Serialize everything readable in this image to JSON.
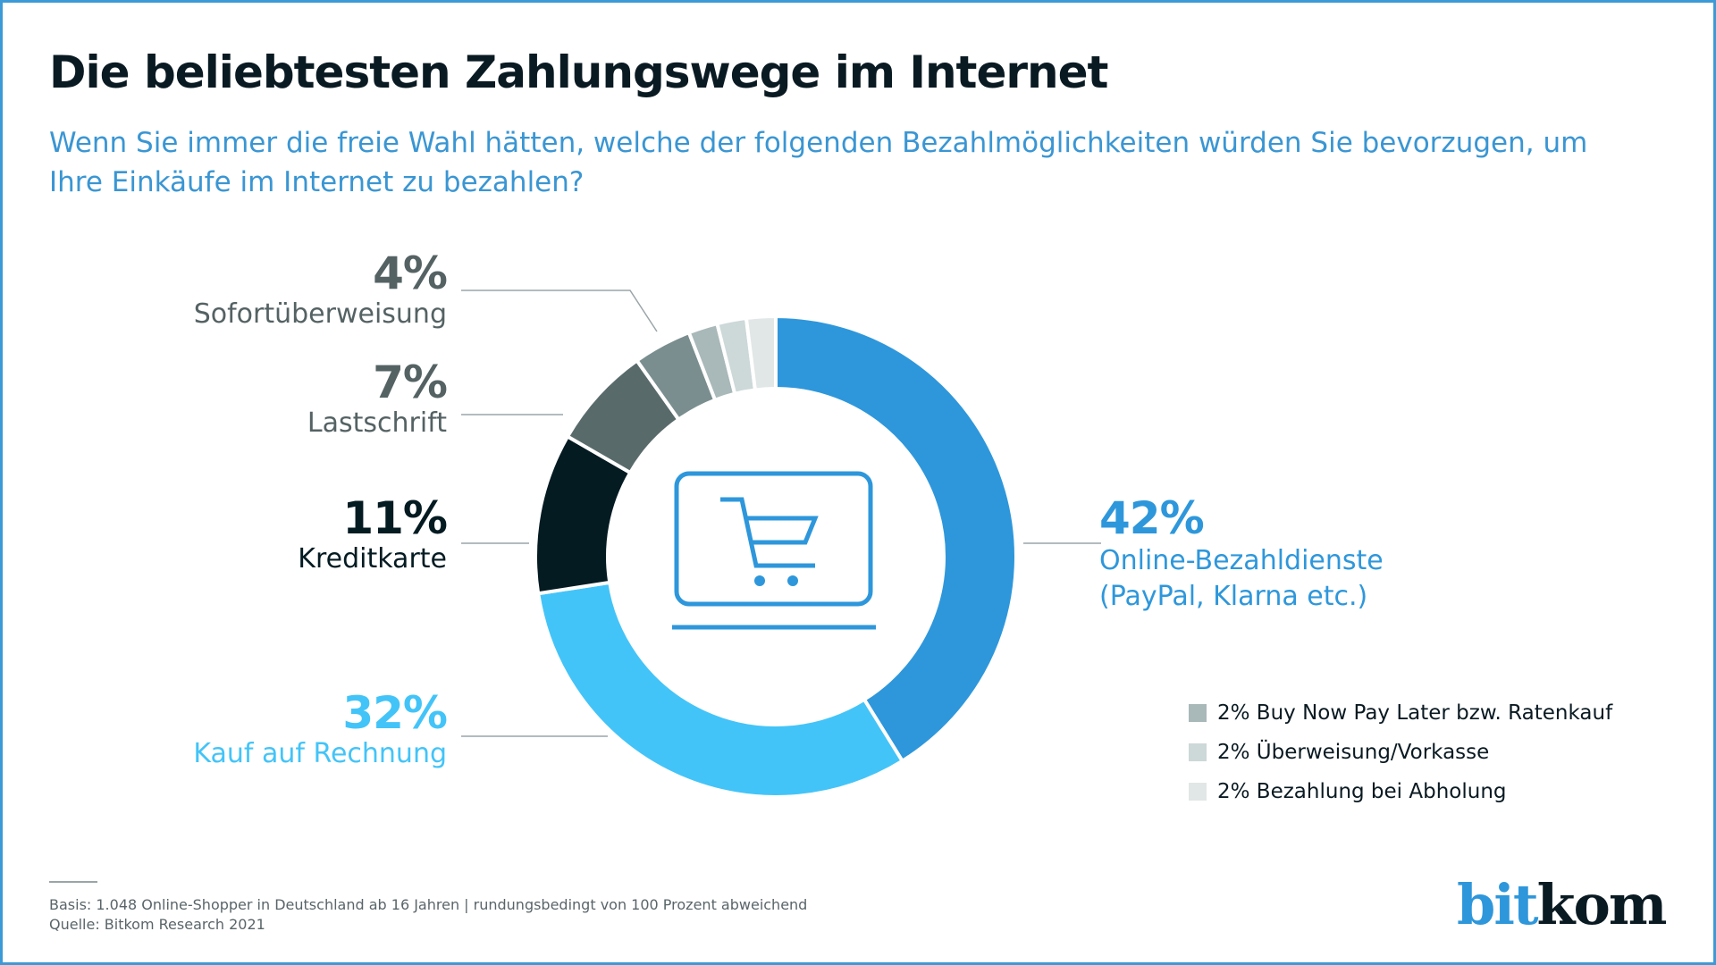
{
  "header": {
    "title": "Die beliebtesten Zahlungswege im Internet",
    "subtitle": "Wenn Sie immer die freie Wahl hätten, welche der folgenden Bezahlmöglichkeiten würden Sie bevorzugen, um Ihre Einkäufe im Internet zu bezahlen?"
  },
  "chart_data": {
    "type": "pie",
    "variant": "donut",
    "title": "Die beliebtesten Zahlungswege im Internet",
    "subtitle": "Wenn Sie immer die freie Wahl hätten, welche der folgenden Bezahlmöglichkeiten würden Sie bevorzugen, um Ihre Einkäufe im Internet zu bezahlen?",
    "unit": "%",
    "start": "12 o'clock",
    "direction": "clockwise",
    "center_icon": "shopping-cart-on-laptop-icon",
    "slices": [
      {
        "label": "Online-Bezahldienste (PayPal, Klarna etc.)",
        "name_lines": [
          "Online-Bezahldienste",
          "(PayPal, Klarna etc.)"
        ],
        "value": 42,
        "value_label": "42%",
        "color": "#2e97db",
        "label_color": "#2e97db",
        "label_side": "right"
      },
      {
        "label": "Kauf auf Rechnung",
        "name_lines": [
          "Kauf auf Rechnung"
        ],
        "value": 32,
        "value_label": "32%",
        "color": "#43c4f8",
        "label_color": "#43c4f8",
        "label_side": "left"
      },
      {
        "label": "Kreditkarte",
        "name_lines": [
          "Kreditkarte"
        ],
        "value": 11,
        "value_label": "11%",
        "color": "#041b22",
        "label_color": "#041b22",
        "label_side": "left"
      },
      {
        "label": "Lastschrift",
        "name_lines": [
          "Lastschrift"
        ],
        "value": 7,
        "value_label": "7%",
        "color": "#596a6b",
        "label_color": "#556263",
        "label_side": "left"
      },
      {
        "label": "Sofortüberweisung",
        "name_lines": [
          "Sofortüberweisung"
        ],
        "value": 4,
        "value_label": "4%",
        "color": "#7b8e8f",
        "label_color": "#556263",
        "label_side": "left"
      },
      {
        "label": "Buy Now Pay Later bzw. Ratenkauf",
        "value": 2,
        "value_label": "2%",
        "color": "#a9b8b8",
        "label_side": "legend"
      },
      {
        "label": "Überweisung/Vorkasse",
        "value": 2,
        "value_label": "2%",
        "color": "#cdd8d8",
        "label_side": "legend"
      },
      {
        "label": "Bezahlung bei Abholung",
        "value": 2,
        "value_label": "2%",
        "color": "#e1e7e6",
        "label_side": "legend"
      }
    ],
    "legend": {
      "placement": "bottom-right",
      "items": [
        {
          "text": "2% Buy Now Pay Later bzw. Ratenkauf",
          "color": "#a9b8b8"
        },
        {
          "text": "2% Überweisung/Vorkasse",
          "color": "#cdd8d8"
        },
        {
          "text": "2% Bezahlung bei Abholung",
          "color": "#e1e7e6"
        }
      ]
    },
    "note": "rundungsbedingt von 100 Prozent abweichend"
  },
  "footer": {
    "basis": "Basis: 1.048 Online-Shopper in Deutschland ab 16 Jahren | rundungsbedingt von 100 Prozent abweichend",
    "source": "Quelle: Bitkom Research 2021"
  },
  "logo": {
    "part1": "bit",
    "part2": "kom",
    "color1": "#2e97db",
    "color2": "#0a1a22"
  },
  "colors": {
    "accent": "#2e97db",
    "frame": "#3d9ad6",
    "leader_line": "#9aa5a8",
    "icon": "#2e97db"
  }
}
